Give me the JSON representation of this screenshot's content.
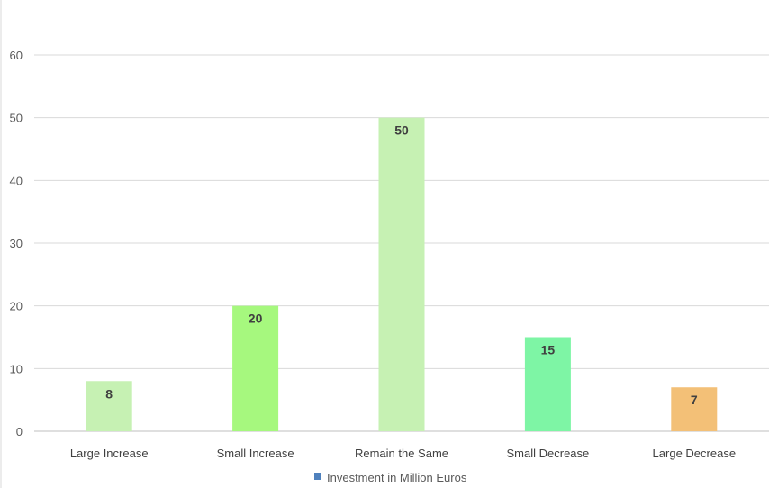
{
  "chart_data": {
    "type": "bar",
    "categories": [
      "Large Increase",
      "Small Increase",
      "Remain the Same",
      "Small Decrease",
      "Large Decrease"
    ],
    "series": [
      {
        "name": "Investment in Million Euros",
        "values": [
          8,
          20,
          50,
          15,
          7
        ],
        "colors": [
          "#c6f1b3",
          "#a6f87e",
          "#c6f1b3",
          "#7ef5a5",
          "#f3c077"
        ]
      }
    ],
    "ylim": [
      0,
      60
    ],
    "yticks": [
      0,
      10,
      20,
      30,
      40,
      50,
      60
    ],
    "grid": true,
    "legend_position": "bottom",
    "legend_marker_color": "#4f81bd",
    "gridline_color": "#d9d9d9",
    "axis_line_color": "#bfbfbf"
  }
}
